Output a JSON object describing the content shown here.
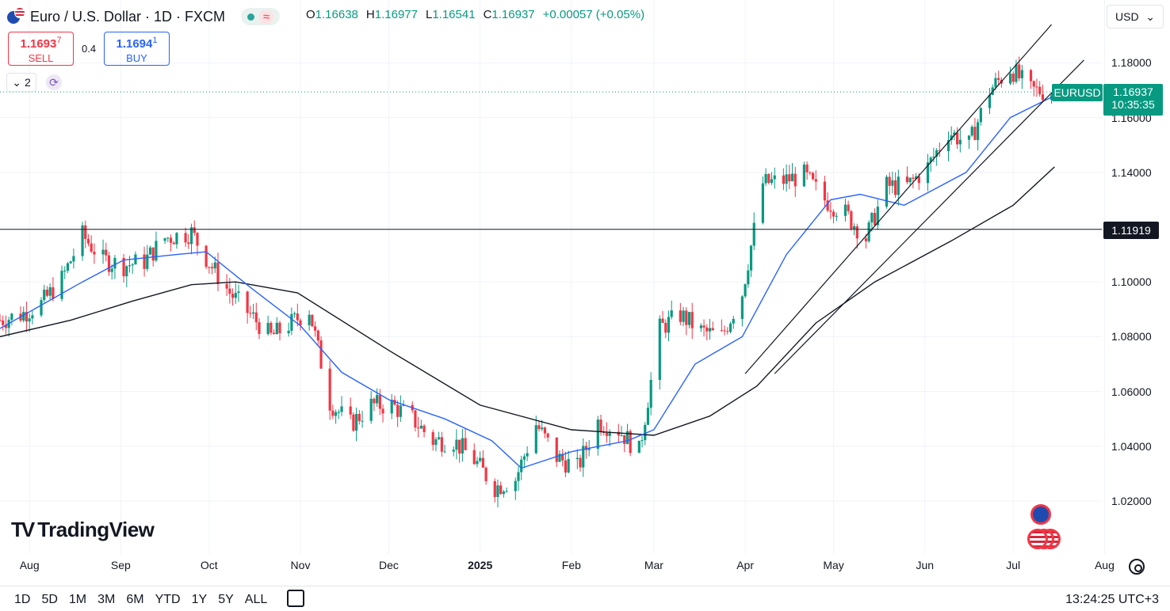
{
  "header": {
    "symbol_title": "Euro / U.S. Dollar · 1D · FXCM",
    "status_icon": "market-open-dot",
    "wave_icon": "≈",
    "ohlc": {
      "open_label": "O",
      "open": "1.16638",
      "high_label": "H",
      "high": "1.16977",
      "low_label": "L",
      "low": "1.16541",
      "close_label": "C",
      "close": "1.16937",
      "change": "+0.00057 (+0.05%)"
    }
  },
  "trade": {
    "sell_price": "1.1693",
    "sell_sup": "7",
    "sell_label": "SELL",
    "spread": "0.4",
    "buy_price": "1.1694",
    "buy_sup": "1",
    "buy_label": "BUY"
  },
  "indicators": {
    "count": "2",
    "toggle_icon": "chevron-down"
  },
  "currency_select": {
    "value": "USD",
    "icon": "chevron-down"
  },
  "price_tags": {
    "symbol": "EURUSD",
    "last_price": "1.16937",
    "countdown": "10:35:35",
    "horizontal_level": "1.11919"
  },
  "logo_text": "TradingView",
  "bottom_bar": {
    "ranges": [
      "1D",
      "5D",
      "1M",
      "3M",
      "6M",
      "YTD",
      "1Y",
      "5Y",
      "ALL"
    ],
    "clock": "13:24:25 UTC+3"
  },
  "colors": {
    "up": "#089981",
    "down": "#f23645",
    "sma_fast": "#2962ff",
    "sma_slow": "#131722"
  },
  "chart_data": {
    "type": "candlestick",
    "title": "Euro / U.S. Dollar · 1D · FXCM",
    "y_ticks": [
      "1.18000",
      "1.16000",
      "1.14000",
      "1.12000",
      "1.10000",
      "1.08000",
      "1.06000",
      "1.04000",
      "1.02000"
    ],
    "ylim": [
      1.009,
      1.197
    ],
    "x_ticks": [
      {
        "label": "Aug",
        "date": "2024-08-01"
      },
      {
        "label": "Sep",
        "date": "2024-09-01"
      },
      {
        "label": "Oct",
        "date": "2024-10-01"
      },
      {
        "label": "Nov",
        "date": "2024-11-01"
      },
      {
        "label": "Dec",
        "date": "2024-12-01"
      },
      {
        "label": "2025",
        "date": "2025-01-01",
        "bold": true
      },
      {
        "label": "Feb",
        "date": "2025-02-01"
      },
      {
        "label": "Mar",
        "date": "2025-03-01"
      },
      {
        "label": "Apr",
        "date": "2025-04-01"
      },
      {
        "label": "May",
        "date": "2025-05-01"
      },
      {
        "label": "Jun",
        "date": "2025-06-01"
      },
      {
        "label": "Jul",
        "date": "2025-07-01"
      },
      {
        "label": "Aug",
        "date": "2025-08-01"
      }
    ],
    "closes": [
      {
        "date": "2024-07-22",
        "value": 1.086
      },
      {
        "date": "2024-07-29",
        "value": 1.088
      },
      {
        "date": "2024-08-05",
        "value": 1.092
      },
      {
        "date": "2024-08-12",
        "value": 1.101
      },
      {
        "date": "2024-08-19",
        "value": 1.117
      },
      {
        "date": "2024-08-26",
        "value": 1.108
      },
      {
        "date": "2024-09-02",
        "value": 1.106
      },
      {
        "date": "2024-09-09",
        "value": 1.1075
      },
      {
        "date": "2024-09-16",
        "value": 1.116
      },
      {
        "date": "2024-09-25",
        "value": 1.118
      },
      {
        "date": "2024-10-01",
        "value": 1.107
      },
      {
        "date": "2024-10-08",
        "value": 1.096
      },
      {
        "date": "2024-10-15",
        "value": 1.088
      },
      {
        "date": "2024-10-22",
        "value": 1.08
      },
      {
        "date": "2024-10-29",
        "value": 1.085
      },
      {
        "date": "2024-11-04",
        "value": 1.09
      },
      {
        "date": "2024-11-11",
        "value": 1.056
      },
      {
        "date": "2024-11-18",
        "value": 1.048
      },
      {
        "date": "2024-11-25",
        "value": 1.055
      },
      {
        "date": "2024-12-02",
        "value": 1.055
      },
      {
        "date": "2024-12-09",
        "value": 1.05
      },
      {
        "date": "2024-12-16",
        "value": 1.042
      },
      {
        "date": "2024-12-23",
        "value": 1.042
      },
      {
        "date": "2024-12-30",
        "value": 1.035
      },
      {
        "date": "2025-01-06",
        "value": 1.025
      },
      {
        "date": "2025-01-13",
        "value": 1.028
      },
      {
        "date": "2025-01-20",
        "value": 1.048
      },
      {
        "date": "2025-01-27",
        "value": 1.036
      },
      {
        "date": "2025-02-03",
        "value": 1.032
      },
      {
        "date": "2025-02-10",
        "value": 1.049
      },
      {
        "date": "2025-02-17",
        "value": 1.046
      },
      {
        "date": "2025-02-24",
        "value": 1.038
      },
      {
        "date": "2025-03-03",
        "value": 1.083
      },
      {
        "date": "2025-03-10",
        "value": 1.088
      },
      {
        "date": "2025-03-17",
        "value": 1.082
      },
      {
        "date": "2025-03-24",
        "value": 1.08
      },
      {
        "date": "2025-03-31",
        "value": 1.096
      },
      {
        "date": "2025-04-07",
        "value": 1.136
      },
      {
        "date": "2025-04-14",
        "value": 1.137
      },
      {
        "date": "2025-04-21",
        "value": 1.139
      },
      {
        "date": "2025-04-28",
        "value": 1.13
      },
      {
        "date": "2025-05-05",
        "value": 1.125
      },
      {
        "date": "2025-05-12",
        "value": 1.116
      },
      {
        "date": "2025-05-19",
        "value": 1.135
      },
      {
        "date": "2025-05-26",
        "value": 1.135
      },
      {
        "date": "2025-06-02",
        "value": 1.142
      },
      {
        "date": "2025-06-09",
        "value": 1.155
      },
      {
        "date": "2025-06-16",
        "value": 1.15
      },
      {
        "date": "2025-06-23",
        "value": 1.17
      },
      {
        "date": "2025-06-30",
        "value": 1.178
      },
      {
        "date": "2025-07-07",
        "value": 1.17
      },
      {
        "date": "2025-07-14",
        "value": 1.16937
      }
    ],
    "sma_fast": [
      {
        "date": "2024-07-22",
        "value": 1.083
      },
      {
        "date": "2024-08-19",
        "value": 1.1
      },
      {
        "date": "2024-09-02",
        "value": 1.108
      },
      {
        "date": "2024-09-20",
        "value": 1.11
      },
      {
        "date": "2024-09-30",
        "value": 1.111
      },
      {
        "date": "2024-10-15",
        "value": 1.098
      },
      {
        "date": "2024-11-01",
        "value": 1.084
      },
      {
        "date": "2024-11-15",
        "value": 1.067
      },
      {
        "date": "2024-12-01",
        "value": 1.057
      },
      {
        "date": "2024-12-20",
        "value": 1.05
      },
      {
        "date": "2025-01-05",
        "value": 1.042
      },
      {
        "date": "2025-01-15",
        "value": 1.032
      },
      {
        "date": "2025-02-01",
        "value": 1.038
      },
      {
        "date": "2025-02-20",
        "value": 1.042
      },
      {
        "date": "2025-03-01",
        "value": 1.046
      },
      {
        "date": "2025-03-15",
        "value": 1.07
      },
      {
        "date": "2025-03-31",
        "value": 1.08
      },
      {
        "date": "2025-04-15",
        "value": 1.11
      },
      {
        "date": "2025-04-30",
        "value": 1.13
      },
      {
        "date": "2025-05-10",
        "value": 1.132
      },
      {
        "date": "2025-05-25",
        "value": 1.128
      },
      {
        "date": "2025-06-15",
        "value": 1.14
      },
      {
        "date": "2025-06-30",
        "value": 1.16
      },
      {
        "date": "2025-07-15",
        "value": 1.168
      }
    ],
    "sma_slow": [
      {
        "date": "2024-07-22",
        "value": 1.08
      },
      {
        "date": "2024-08-15",
        "value": 1.086
      },
      {
        "date": "2024-09-05",
        "value": 1.093
      },
      {
        "date": "2024-09-25",
        "value": 1.099
      },
      {
        "date": "2024-10-10",
        "value": 1.1
      },
      {
        "date": "2024-10-31",
        "value": 1.096
      },
      {
        "date": "2024-12-01",
        "value": 1.075
      },
      {
        "date": "2025-01-01",
        "value": 1.055
      },
      {
        "date": "2025-02-01",
        "value": 1.046
      },
      {
        "date": "2025-03-01",
        "value": 1.044
      },
      {
        "date": "2025-03-20",
        "value": 1.051
      },
      {
        "date": "2025-04-05",
        "value": 1.062
      },
      {
        "date": "2025-04-25",
        "value": 1.085
      },
      {
        "date": "2025-05-15",
        "value": 1.1
      },
      {
        "date": "2025-06-10",
        "value": 1.115
      },
      {
        "date": "2025-07-01",
        "value": 1.128
      },
      {
        "date": "2025-07-15",
        "value": 1.142
      }
    ],
    "channel": [
      {
        "from": {
          "date": "2025-04-01",
          "value": 1.0665
        },
        "to": {
          "date": "2025-07-14",
          "value": 1.194
        }
      },
      {
        "from": {
          "date": "2025-04-11",
          "value": 1.0665
        },
        "to": {
          "date": "2025-07-25",
          "value": 1.181
        }
      }
    ],
    "horizontal_line": 1.11919,
    "last_price": 1.16937
  }
}
